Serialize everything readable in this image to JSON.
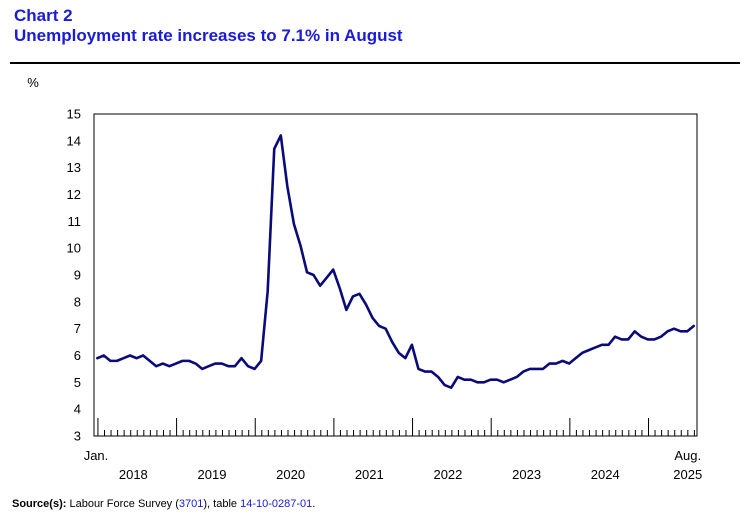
{
  "header": {
    "chart_number": "Chart 2",
    "title": "Unemployment rate increases to 7.1% in August"
  },
  "colors": {
    "title": "#1a1ad9",
    "series_line": "#0a0a78",
    "link": "#1a1ad9"
  },
  "source": {
    "label": "Source(s):",
    "text_1": "Labour Force Survey (",
    "link_1": "3701",
    "text_2": "), table ",
    "link_2": "14-10-0287-01",
    "text_3": "."
  },
  "chart_data": {
    "type": "line",
    "title": "Unemployment rate increases to 7.1% in August",
    "ylabel": "%",
    "xlabel": "",
    "ylim": [
      3,
      15
    ],
    "yticks": [
      3,
      4,
      5,
      6,
      7,
      8,
      9,
      10,
      11,
      12,
      13,
      14,
      15
    ],
    "grid": false,
    "start_label": "Jan.",
    "end_label": "Aug.",
    "year_labels": [
      "2018",
      "2019",
      "2020",
      "2021",
      "2022",
      "2023",
      "2024",
      "2025"
    ],
    "series": [
      {
        "name": "Unemployment rate",
        "start": "2018-01",
        "end": "2025-08",
        "values": [
          5.9,
          6.0,
          5.8,
          5.8,
          5.9,
          6.0,
          5.9,
          6.0,
          5.8,
          5.6,
          5.7,
          5.6,
          5.7,
          5.8,
          5.8,
          5.7,
          5.5,
          5.6,
          5.7,
          5.7,
          5.6,
          5.6,
          5.9,
          5.6,
          5.5,
          5.8,
          8.4,
          13.7,
          14.2,
          12.3,
          10.9,
          10.1,
          9.1,
          9.0,
          8.6,
          8.9,
          9.2,
          8.5,
          7.7,
          8.2,
          8.3,
          7.9,
          7.4,
          7.1,
          7.0,
          6.5,
          6.1,
          5.9,
          6.4,
          5.5,
          5.4,
          5.4,
          5.2,
          4.9,
          4.8,
          5.2,
          5.1,
          5.1,
          5.0,
          5.0,
          5.1,
          5.1,
          5.0,
          5.1,
          5.2,
          5.4,
          5.5,
          5.5,
          5.5,
          5.7,
          5.7,
          5.8,
          5.7,
          5.9,
          6.1,
          6.2,
          6.3,
          6.4,
          6.4,
          6.7,
          6.6,
          6.6,
          6.9,
          6.7,
          6.6,
          6.6,
          6.7,
          6.9,
          7.0,
          6.9,
          6.9,
          7.1
        ]
      }
    ]
  }
}
